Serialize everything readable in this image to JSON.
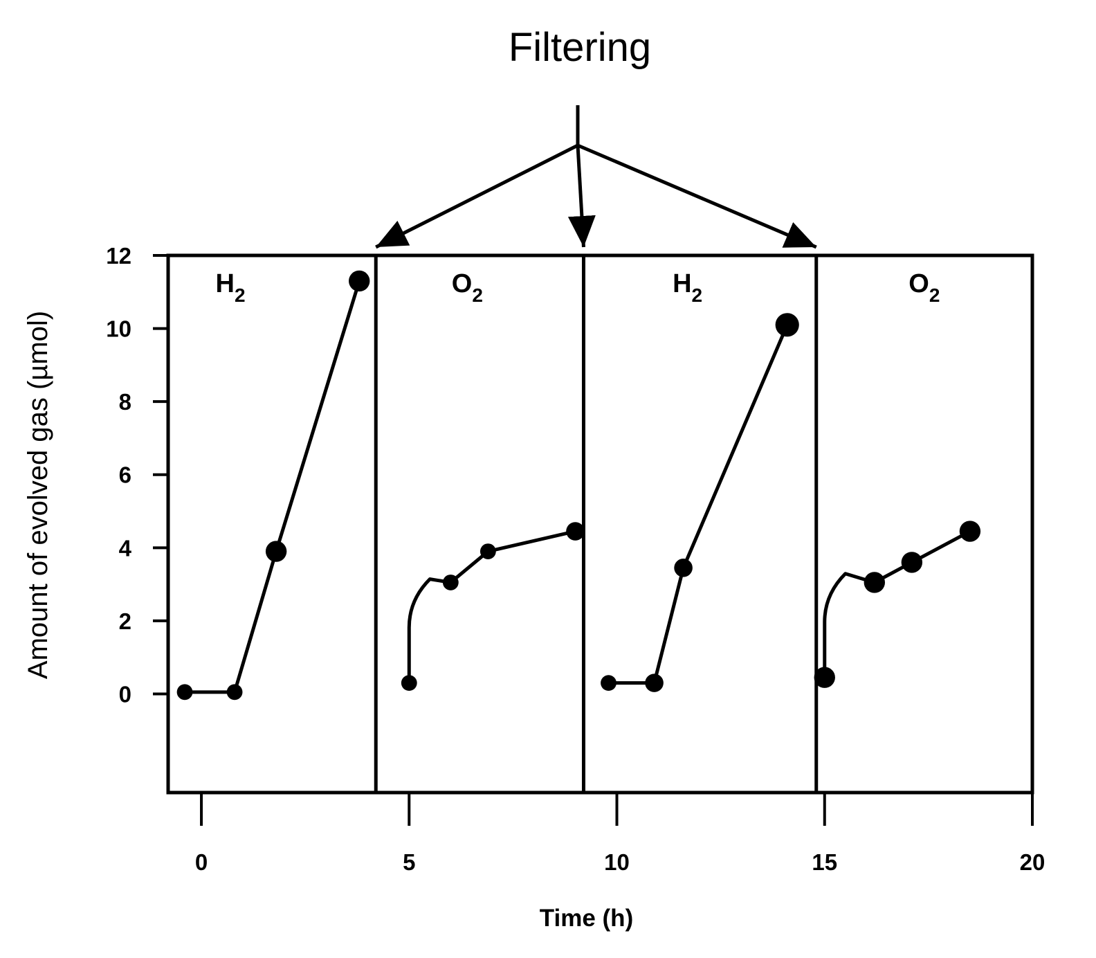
{
  "chart_data": {
    "type": "line",
    "title": "",
    "xlabel": "Time (h)",
    "ylabel": "Amount of evolved gas (µmol)",
    "xlim": [
      -0.8,
      20
    ],
    "ylim": [
      -2.7,
      12
    ],
    "x_ticks": [
      0,
      5,
      10,
      15,
      20
    ],
    "y_ticks": [
      0,
      2,
      4,
      6,
      8,
      10,
      12
    ],
    "grid": false,
    "legend": "none",
    "dividers_x": [
      4.2,
      9.2,
      14.8
    ],
    "panel_labels": [
      {
        "gas": "H",
        "sub": "2",
        "x": 0.7,
        "y": 11.0
      },
      {
        "gas": "O",
        "sub": "2",
        "x": 6.4,
        "y": 11.0
      },
      {
        "gas": "H",
        "sub": "2",
        "x": 11.7,
        "y": 11.0
      },
      {
        "gas": "O",
        "sub": "2",
        "x": 17.4,
        "y": 11.0
      }
    ],
    "series": [
      {
        "gas": "H2",
        "x": [
          -0.4,
          0.8,
          1.8,
          3.8
        ],
        "y": [
          0.05,
          0.05,
          3.9,
          11.3
        ],
        "marker_size": [
          6,
          6,
          8,
          8
        ]
      },
      {
        "gas": "O2",
        "x": [
          5.0,
          6.0,
          6.9,
          9.0
        ],
        "y": [
          0.3,
          3.05,
          3.9,
          4.45
        ],
        "marker_size": [
          6,
          6,
          6,
          7
        ]
      },
      {
        "gas": "H2",
        "x": [
          9.8,
          10.9,
          11.6,
          14.1
        ],
        "y": [
          0.3,
          0.3,
          3.45,
          10.1
        ],
        "marker_size": [
          6,
          7,
          7,
          9
        ]
      },
      {
        "gas": "O2",
        "x": [
          15.0,
          16.2,
          17.1,
          18.5
        ],
        "y": [
          0.45,
          3.05,
          3.6,
          4.45
        ],
        "marker_size": [
          8,
          8,
          8,
          8
        ]
      }
    ],
    "annotation": {
      "text": "Filtering",
      "arrow_targets": [
        4.2,
        9.2,
        14.8
      ]
    }
  },
  "colors": {
    "ink": "#000000",
    "background": "#ffffff"
  }
}
